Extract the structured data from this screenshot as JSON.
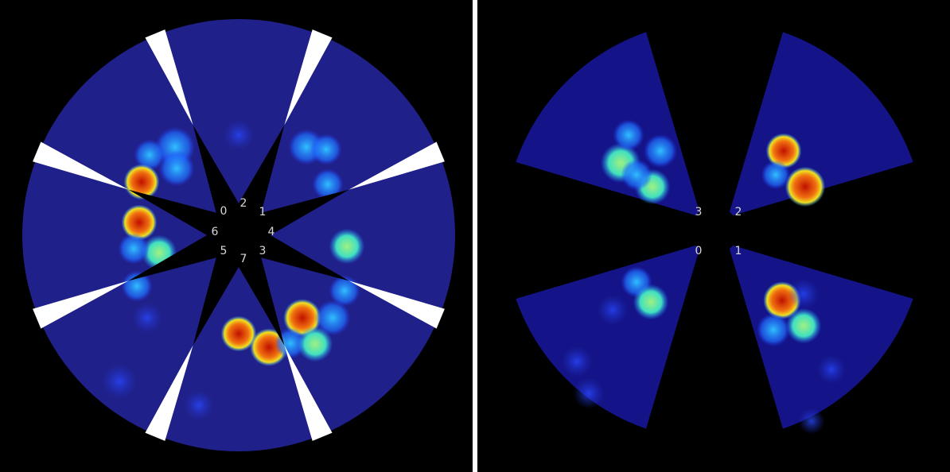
{
  "left_panel": {
    "labels": [
      "0",
      "1",
      "2",
      "3",
      "4",
      "5",
      "6",
      "7"
    ]
  },
  "right_panel": {
    "labels": [
      "0",
      "1",
      "2",
      "3"
    ]
  }
}
